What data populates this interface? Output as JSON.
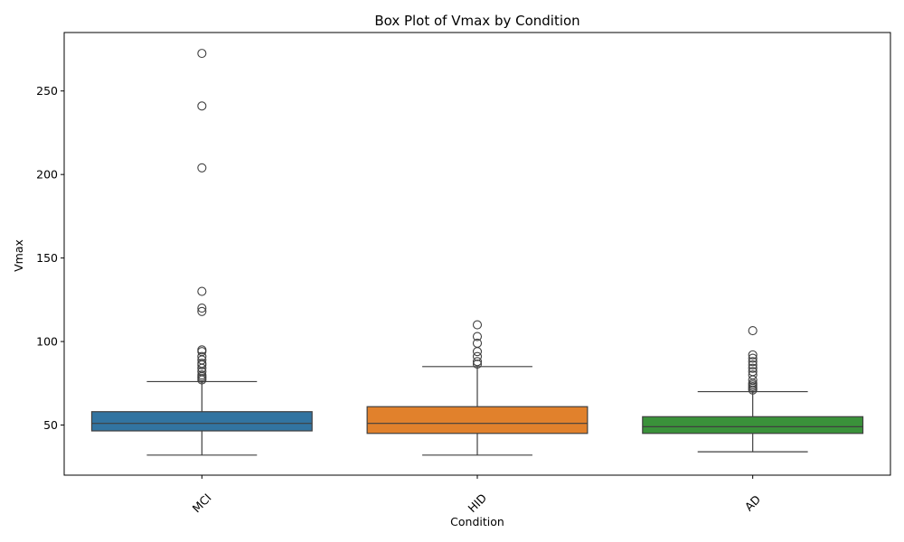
{
  "chart_data": {
    "type": "box",
    "title": "Box Plot of Vmax by Condition",
    "xlabel": "Condition",
    "ylabel": "Vmax",
    "ylim": [
      20,
      285
    ],
    "yticks": [
      50,
      100,
      150,
      200,
      250
    ],
    "grid": false,
    "legend": "none",
    "categories": [
      "MCI",
      "HID",
      "AD"
    ],
    "boxes": [
      {
        "category": "MCI",
        "color": "#3274a1",
        "whisker_low": 32,
        "q1": 46.5,
        "median": 51,
        "q3": 58,
        "whisker_high": 76,
        "outliers": [
          272.5,
          241,
          204,
          130,
          120,
          118,
          95,
          94,
          91,
          89,
          87,
          86,
          84,
          82,
          80,
          79,
          78,
          77
        ]
      },
      {
        "category": "HID",
        "color": "#e1812c",
        "whisker_low": 32,
        "q1": 45,
        "median": 51,
        "q3": 61,
        "whisker_high": 85,
        "outliers": [
          110,
          103,
          99,
          94,
          91,
          88,
          86.5
        ]
      },
      {
        "category": "AD",
        "color": "#3a923a",
        "whisker_low": 34,
        "q1": 45,
        "median": 49,
        "q3": 55,
        "whisker_high": 70,
        "outliers": [
          106.5,
          92,
          90,
          88,
          86,
          84,
          82,
          80,
          77,
          75,
          74,
          73,
          72,
          71
        ]
      }
    ]
  }
}
